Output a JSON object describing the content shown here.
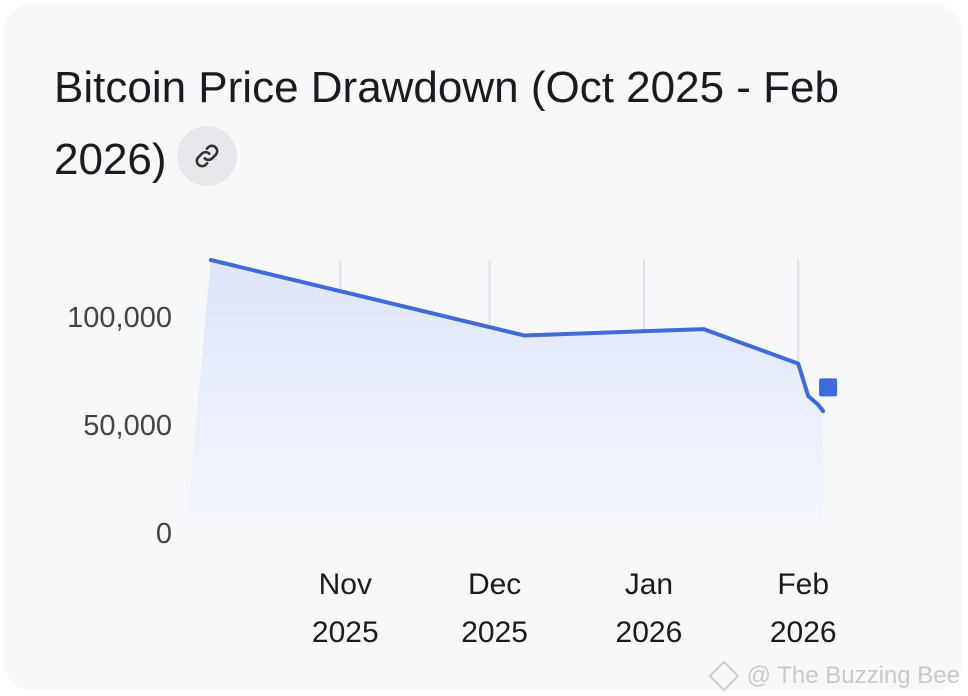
{
  "title": "Bitcoin Price Drawdown (Oct 2025 - Feb 2026)",
  "link_icon": "link-icon",
  "watermark": "@ The Buzzing Bee",
  "colors": {
    "line": "#3f6ad8",
    "area_top": "#dde5f8",
    "area_bottom": "#f5f7fc",
    "grid": "#dfe2e8",
    "axis_text": "#444444"
  },
  "chart_data": {
    "type": "area",
    "x_type": "date",
    "x": [
      "2025-10-06",
      "2025-12-08",
      "2026-01-13",
      "2026-02-01",
      "2026-02-03",
      "2026-02-05",
      "2026-02-06"
    ],
    "y": [
      126000,
      91000,
      94000,
      78000,
      63000,
      59000,
      56000
    ],
    "last_point": {
      "x": "2026-02-07",
      "y": 67000
    },
    "ylim": [
      0,
      126000
    ],
    "y_ticks": [
      {
        "value": 0,
        "label": "0"
      },
      {
        "value": 50000,
        "label": "50,000"
      },
      {
        "value": 100000,
        "label": "100,000"
      }
    ],
    "x_ticks": [
      {
        "date": "2025-11-01",
        "label": [
          "Nov",
          "2025"
        ]
      },
      {
        "date": "2025-12-01",
        "label": [
          "Dec",
          "2025"
        ]
      },
      {
        "date": "2026-01-01",
        "label": [
          "Jan",
          "2026"
        ]
      },
      {
        "date": "2026-02-01",
        "label": [
          "Feb",
          "2026"
        ]
      }
    ],
    "grid": {
      "vertical": true,
      "horizontal": false
    },
    "legend": "none"
  }
}
